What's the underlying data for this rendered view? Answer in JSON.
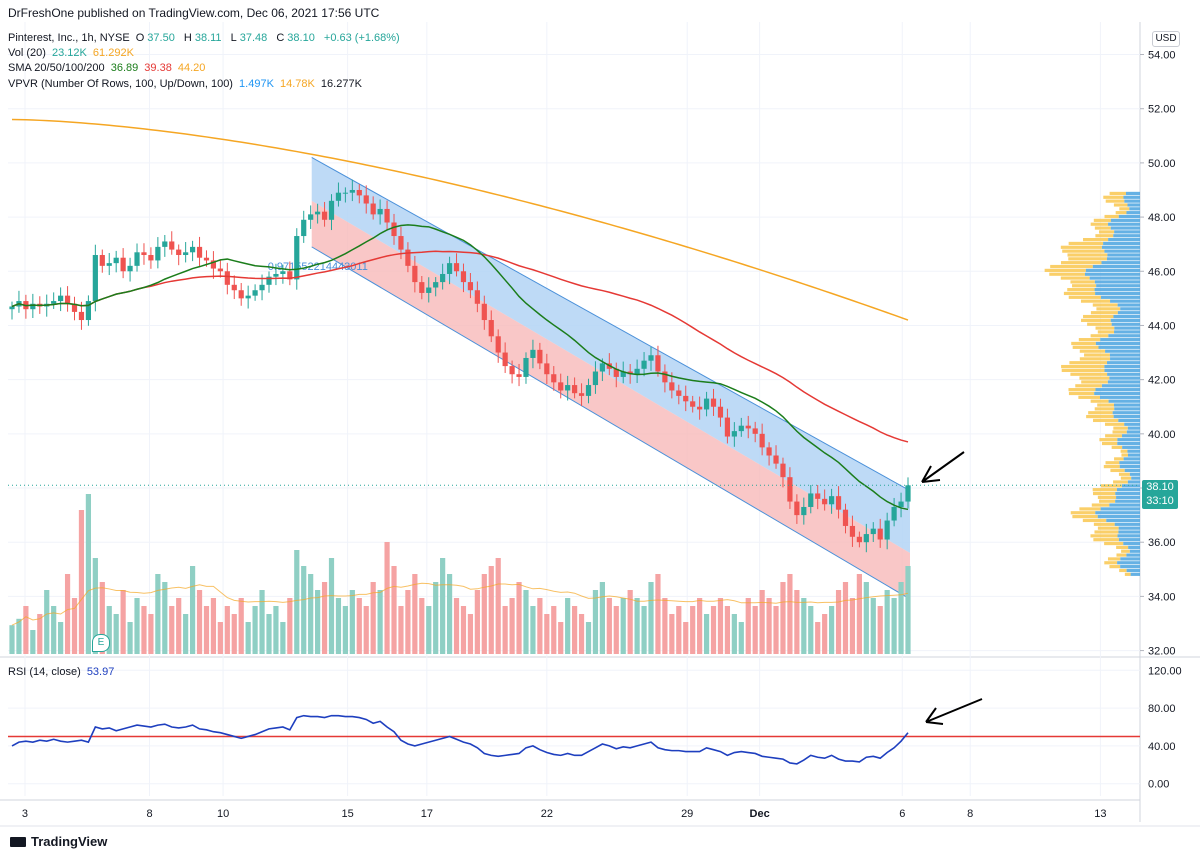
{
  "header": {
    "publish_line": "DrFreshOne published on TradingView.com, Dec 06, 2021 17:56 UTC",
    "symbol_line": "Pinterest, Inc., 1h, NYSE",
    "open_label": "O",
    "open": "37.50",
    "high_label": "H",
    "high": "38.11",
    "low_label": "L",
    "low": "37.48",
    "close_label": "C",
    "close": "38.10",
    "change": "+0.63 (+1.68%)",
    "vol_label": "Vol (20)",
    "vol_value": "23.12K",
    "vol_ma": "61.292K",
    "sma_label": "SMA 20/50/100/200",
    "sma20": "36.89",
    "sma50": "39.38",
    "sma100": "44.20",
    "vpvr_label": "VPVR (Number Of Rows, 100, Up/Down, 100)",
    "vpvr_up": "1.497K",
    "vpvr_down": "14.78K",
    "vpvr_total": "16.277K",
    "rsi_label": "RSI (14, close)",
    "rsi_value": "53.97"
  },
  "currency": "USD",
  "price_tag": {
    "price": "38.10",
    "countdown": "33:10"
  },
  "earnings_badge": "E",
  "fib_label": "0.971552214443011",
  "brand": "TradingView",
  "colors": {
    "up": "#26a69a",
    "down": "#ef5350",
    "up_vol": "#8fcfc4",
    "down_vol": "#f5a3a3",
    "sma20": "#1b7d1b",
    "sma50": "#e53935",
    "sma200": "#f5a623",
    "rsi": "#1e3fbf",
    "rsi_level": "#e53935",
    "vpvr_up": "#4aa3df",
    "vpvr_down": "#f9c74f",
    "channel_upper": "#b3d4f5",
    "channel_lower": "#f8b9b9"
  },
  "chart_data": [
    {
      "type": "candlestick",
      "title": "",
      "price_axis": {
        "ticks": [
          "54.00",
          "52.00",
          "50.00",
          "48.00",
          "46.00",
          "44.00",
          "42.00",
          "40.00",
          "38.00",
          "36.00",
          "34.00",
          "32.00"
        ],
        "ylim": [
          31.8,
          55.2
        ]
      },
      "time_axis": {
        "ticks": [
          "3",
          "8",
          "10",
          "15",
          "17",
          "22",
          "29",
          "Dec",
          "6",
          "8",
          "13"
        ]
      },
      "close_series": [
        44.7,
        44.9,
        44.6,
        44.8,
        44.7,
        44.8,
        44.9,
        45.1,
        44.8,
        44.5,
        44.2,
        44.9,
        46.6,
        46.2,
        46.3,
        46.5,
        46.0,
        46.2,
        46.7,
        46.6,
        46.4,
        46.9,
        47.1,
        46.8,
        46.6,
        46.7,
        46.9,
        46.5,
        46.4,
        46.1,
        46.0,
        45.5,
        45.3,
        45.0,
        45.1,
        45.3,
        45.5,
        45.8,
        45.9,
        46.0,
        45.7,
        47.3,
        47.9,
        48.1,
        48.2,
        47.9,
        48.6,
        48.9,
        48.9,
        49.0,
        48.8,
        48.5,
        48.1,
        48.3,
        47.8,
        47.3,
        46.8,
        46.2,
        45.6,
        45.2,
        45.4,
        45.6,
        45.9,
        46.3,
        46.0,
        45.6,
        45.3,
        44.8,
        44.2,
        43.6,
        43.0,
        42.5,
        42.2,
        42.1,
        42.8,
        43.1,
        42.6,
        42.2,
        41.9,
        41.6,
        41.8,
        41.5,
        41.4,
        41.8,
        42.3,
        42.6,
        42.4,
        42.1,
        42.3,
        42.2,
        42.4,
        42.7,
        42.9,
        42.3,
        41.9,
        41.6,
        41.4,
        41.2,
        41.0,
        40.9,
        41.3,
        41.0,
        40.6,
        39.9,
        40.1,
        40.3,
        40.2,
        40.0,
        39.5,
        39.2,
        38.9,
        38.4,
        37.5,
        37.0,
        37.3,
        37.8,
        37.6,
        37.4,
        37.7,
        37.2,
        36.6,
        36.2,
        36.0,
        36.3,
        36.5,
        36.1,
        36.8,
        37.3,
        37.5,
        38.1
      ],
      "sma20_latest": 36.89,
      "sma50_latest": 39.38,
      "sma200_latest": 44.2,
      "vpvr_latest": {
        "up": "1.497K",
        "down": "14.78K",
        "total": "16.277K"
      }
    },
    {
      "type": "line",
      "title": "",
      "series": [
        {
          "values": [
            40,
            44,
            45,
            44,
            46,
            45,
            47,
            45,
            44,
            45,
            46,
            44,
            60,
            58,
            59,
            56,
            58,
            60,
            62,
            61,
            60,
            62,
            63,
            60,
            59,
            60,
            62,
            58,
            57,
            55,
            54,
            52,
            50,
            48,
            50,
            52,
            55,
            58,
            59,
            60,
            57,
            70,
            72,
            71,
            71,
            70,
            72,
            72,
            71,
            71,
            70,
            68,
            64,
            66,
            60,
            55,
            46,
            42,
            40,
            42,
            44,
            46,
            48,
            50,
            47,
            44,
            42,
            38,
            32,
            30,
            29,
            30,
            31,
            32,
            38,
            40,
            36,
            33,
            31,
            30,
            32,
            30,
            30,
            34,
            38,
            42,
            40,
            37,
            39,
            38,
            40,
            42,
            44,
            38,
            36,
            35,
            35,
            34,
            34,
            34,
            38,
            36,
            34,
            30,
            33,
            34,
            33,
            32,
            29,
            28,
            27,
            26,
            22,
            21,
            25,
            30,
            28,
            27,
            30,
            26,
            24,
            24,
            23,
            28,
            29,
            27,
            33,
            38,
            45,
            53.97
          ]
        }
      ],
      "levels": [
        50
      ],
      "ticks": [
        "120.00",
        "80.00",
        "40.00",
        "0.00"
      ],
      "ylim": [
        -13,
        133
      ]
    }
  ]
}
